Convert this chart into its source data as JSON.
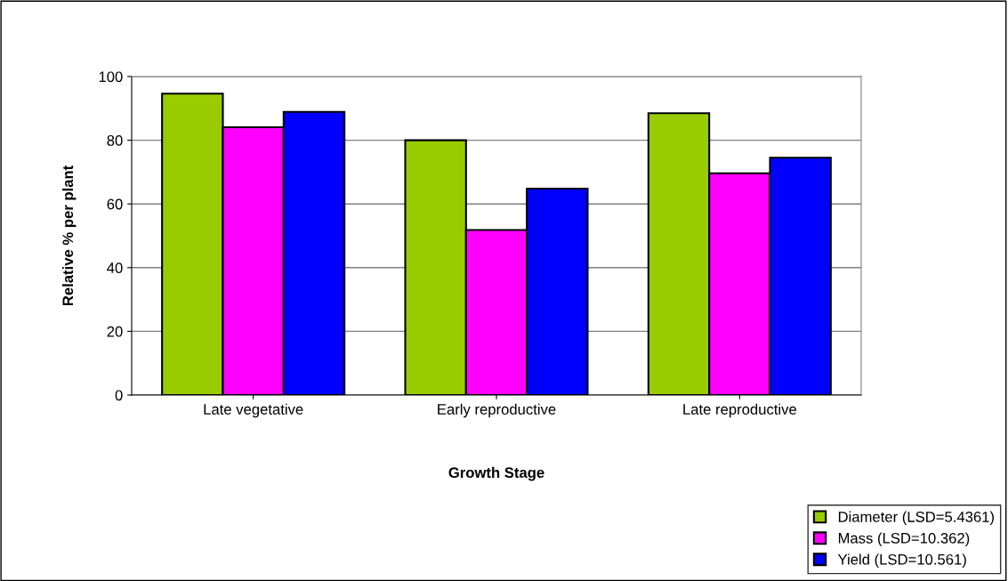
{
  "chart_data": {
    "type": "bar",
    "xlabel": "Growth Stage",
    "ylabel": "Relative % per plant",
    "categories": [
      "Late vegetative",
      "Early reproductive",
      "Late reproductive"
    ],
    "series": [
      {
        "name": "Diameter (LSD=5.4361)",
        "color": "#99cc00",
        "values": [
          94.6,
          80,
          88.5
        ]
      },
      {
        "name": "Mass (LSD=10.362)",
        "color": "#ff00ff",
        "values": [
          84.1,
          51.8,
          69.6
        ]
      },
      {
        "name": "Yield (LSD=10.561)",
        "color": "#0000ff",
        "values": [
          88.9,
          64.8,
          74.5
        ]
      }
    ],
    "ylim": [
      0,
      100
    ],
    "yticks": [
      0,
      20,
      40,
      60,
      80,
      100
    ],
    "grid": "y",
    "legend": "bottom right"
  }
}
